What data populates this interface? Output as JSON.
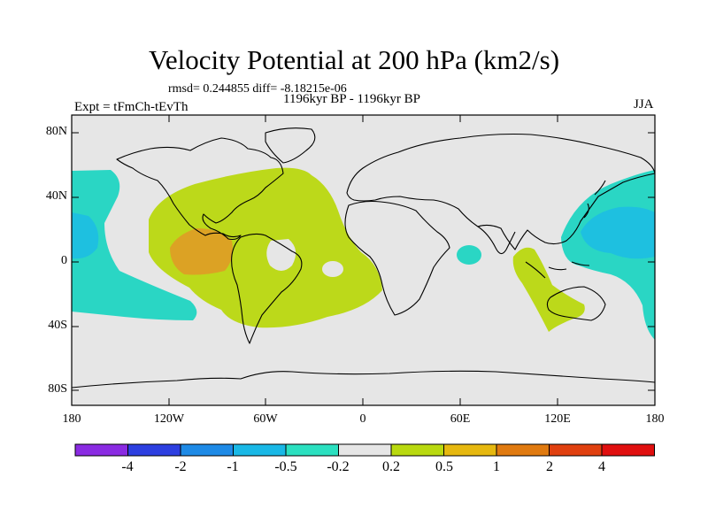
{
  "title": "Velocity Potential at 200 hPa (km2/s)",
  "stats": "rmsd= 0.244855 diff= -8.18215e-06",
  "period": "1196kyr BP - 1196kyr BP",
  "experiment": "Expt = tFmCh-tEvTh",
  "season": "JJA",
  "lat_labels": [
    "80N",
    "40N",
    "0",
    "40S",
    "80S"
  ],
  "lon_labels": [
    "180",
    "120W",
    "60W",
    "0",
    "60E",
    "120E",
    "180"
  ],
  "colorbar": {
    "labels": [
      "-4",
      "-2",
      "-1",
      "-0.5",
      "-0.2",
      "0.2",
      "0.5",
      "1",
      "2",
      "4"
    ],
    "colors": [
      "#8a2be2",
      "#2d3fe0",
      "#1e8ae6",
      "#19b8e6",
      "#2be0c0",
      "#e6e6e6",
      "#b9d90f",
      "#e6b80f",
      "#e07a10",
      "#e0400f",
      "#e00f0f"
    ]
  },
  "colors": {
    "background": "#e6e6e6",
    "positive_weak": "#bcd91a",
    "positive_mid": "#dca224",
    "negative_weak": "#2ad6c4",
    "negative_mid": "#1ec0e0"
  }
}
